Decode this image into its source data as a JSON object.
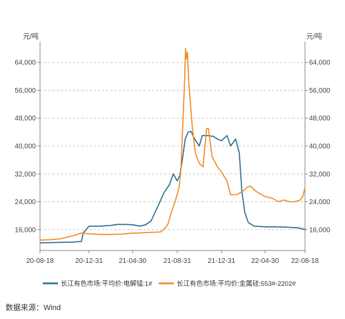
{
  "chart_data": {
    "type": "line",
    "y_unit_left": "元/吨",
    "y_unit_right": "元/吨",
    "x_ticks": [
      "20-08-18",
      "20-12-31",
      "21-04-30",
      "21-08-31",
      "21-12-31",
      "22-04-30",
      "22-08-18"
    ],
    "y_ticks": [
      "16,000",
      "24,000",
      "32,000",
      "40,000",
      "48,000",
      "56,000",
      "64,000"
    ],
    "ylim": [
      10000,
      70000
    ],
    "grid": "horizontal-dashed",
    "legend_position": "bottom",
    "series": [
      {
        "name": "长江有色市场:平均价:电解锰:1#",
        "color": "#2a6e96",
        "points": [
          [
            "20-08-18",
            12200
          ],
          [
            "20-10-01",
            12300
          ],
          [
            "20-11-15",
            12400
          ],
          [
            "20-12-10",
            12600
          ],
          [
            "20-12-15",
            15000
          ],
          [
            "20-12-31",
            17000
          ],
          [
            "21-01-31",
            17000
          ],
          [
            "21-02-28",
            17200
          ],
          [
            "21-03-20",
            17500
          ],
          [
            "21-04-10",
            17500
          ],
          [
            "21-04-30",
            17400
          ],
          [
            "21-05-20",
            17000
          ],
          [
            "21-06-05",
            17400
          ],
          [
            "21-06-20",
            18500
          ],
          [
            "21-07-10",
            23000
          ],
          [
            "21-07-25",
            26500
          ],
          [
            "21-08-10",
            29000
          ],
          [
            "21-08-20",
            32000
          ],
          [
            "21-08-31",
            30000
          ],
          [
            "21-09-07",
            31500
          ],
          [
            "21-09-14",
            36000
          ],
          [
            "21-09-22",
            42000
          ],
          [
            "21-09-30",
            44000
          ],
          [
            "21-10-08",
            44200
          ],
          [
            "21-10-18",
            42000
          ],
          [
            "21-10-31",
            40000
          ],
          [
            "21-11-08",
            43000
          ],
          [
            "21-11-22",
            43000
          ],
          [
            "21-12-08",
            42800
          ],
          [
            "21-12-20",
            42000
          ],
          [
            "21-12-31",
            41500
          ],
          [
            "22-01-15",
            43000
          ],
          [
            "22-01-25",
            40000
          ],
          [
            "22-02-08",
            42000
          ],
          [
            "22-02-18",
            38000
          ],
          [
            "22-02-25",
            27000
          ],
          [
            "22-03-05",
            21000
          ],
          [
            "22-03-15",
            18000
          ],
          [
            "22-03-31",
            17000
          ],
          [
            "22-04-30",
            16800
          ],
          [
            "22-05-31",
            16800
          ],
          [
            "22-06-30",
            16700
          ],
          [
            "22-07-31",
            16500
          ],
          [
            "22-08-18",
            16000
          ]
        ]
      },
      {
        "name": "长江有色市场:平均价:金属硅:553#-2202#",
        "color": "#f28a22",
        "points": [
          [
            "20-08-18",
            13000
          ],
          [
            "20-09-15",
            13100
          ],
          [
            "20-10-15",
            13400
          ],
          [
            "20-11-15",
            14200
          ],
          [
            "20-12-10",
            15000
          ],
          [
            "20-12-31",
            14800
          ],
          [
            "21-01-31",
            14600
          ],
          [
            "21-02-28",
            14600
          ],
          [
            "21-03-31",
            14700
          ],
          [
            "21-04-10",
            14800
          ],
          [
            "21-04-30",
            15000
          ],
          [
            "21-05-15",
            15000
          ],
          [
            "21-06-15",
            15200
          ],
          [
            "21-07-15",
            15300
          ],
          [
            "21-07-25",
            16000
          ],
          [
            "21-08-05",
            17500
          ],
          [
            "21-08-15",
            21000
          ],
          [
            "21-08-25",
            24000
          ],
          [
            "21-09-05",
            28000
          ],
          [
            "21-09-10",
            33000
          ],
          [
            "21-09-15",
            45000
          ],
          [
            "21-09-20",
            58000
          ],
          [
            "21-09-23",
            68000
          ],
          [
            "21-09-25",
            65000
          ],
          [
            "21-09-28",
            67000
          ],
          [
            "21-10-02",
            58000
          ],
          [
            "21-10-08",
            50000
          ],
          [
            "21-10-12",
            45000
          ],
          [
            "21-10-20",
            38000
          ],
          [
            "21-10-31",
            35000
          ],
          [
            "21-11-10",
            34000
          ],
          [
            "21-11-20",
            45000
          ],
          [
            "21-11-25",
            45000
          ],
          [
            "21-12-05",
            37000
          ],
          [
            "21-12-20",
            34000
          ],
          [
            "21-12-31",
            32500
          ],
          [
            "22-01-15",
            30000
          ],
          [
            "22-01-25",
            26000
          ],
          [
            "22-02-10",
            26000
          ],
          [
            "22-02-28",
            27000
          ],
          [
            "22-03-10",
            28000
          ],
          [
            "22-03-20",
            28500
          ],
          [
            "22-04-05",
            27000
          ],
          [
            "22-04-30",
            25500
          ],
          [
            "22-05-20",
            25000
          ],
          [
            "22-06-05",
            24000
          ],
          [
            "22-06-20",
            24500
          ],
          [
            "22-07-05",
            24000
          ],
          [
            "22-07-20",
            24000
          ],
          [
            "22-08-05",
            24500
          ],
          [
            "22-08-12",
            25500
          ],
          [
            "22-08-18",
            28000
          ]
        ]
      }
    ]
  },
  "source_text": "数据来源：Wind"
}
